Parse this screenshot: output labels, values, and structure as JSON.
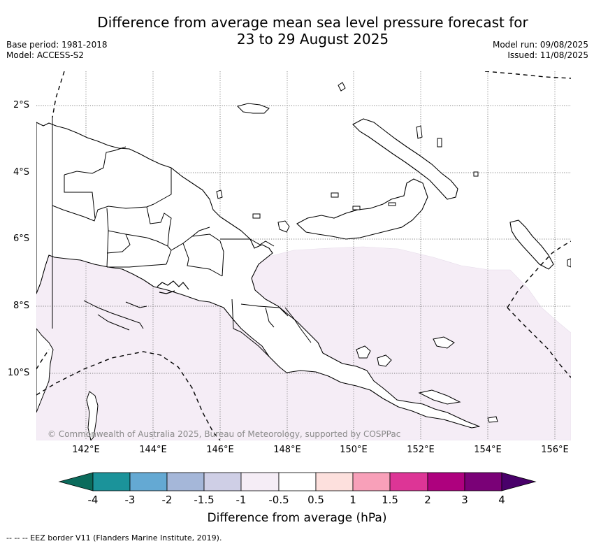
{
  "title_line1": "Difference from average mean sea level pressure forecast for",
  "title_line2": "23 to 29 August 2025",
  "base_period": "Base period: 1981-2018",
  "model": "Model: ACCESS-S2",
  "model_run": "Model run: 09/08/2025",
  "issued": "Issued: 11/08/2025",
  "latitude_labels": [
    "2°S",
    "4°S",
    "6°S",
    "8°S",
    "10°S"
  ],
  "longitude_labels": [
    "142°E",
    "144°E",
    "146°E",
    "148°E",
    "150°E",
    "152°E",
    "154°E",
    "156°E"
  ],
  "copyright": "© Commonwealth of Australia 2025, Bureau of Meteorology, supported by COSPPac",
  "legend": {
    "title": "Difference from average (hPa)",
    "tick_labels": [
      "-4",
      "-3",
      "-2",
      "-1.5",
      "-1",
      "-0.5",
      "0.5",
      "1",
      "1.5",
      "2",
      "3",
      "4"
    ],
    "colors": {
      "below_-4": "#0b6b5c",
      "-4_-3": "#1b939a",
      "-3_-2": "#64a9d3",
      "-2_-1.5": "#a5b7d9",
      "-1.5_-1": "#cfcfe6",
      "-1_-0.5": "#f5edf6",
      "-0.5_0.5": "#ffffff",
      "0.5_1": "#fde0dd",
      "1_1.5": "#f8a0b9",
      "1.5_2": "#dd3596",
      "2_3": "#ae017e",
      "3_4": "#7a0177",
      "above_4": "#49006a"
    }
  },
  "forecast_field": {
    "shaded_category": "-1 to -0.5 hPa",
    "shaded_color": "#f5edf6"
  },
  "eez_note": "--  --  -- EEZ border V11 (Flanders Marine Institute, 2019)."
}
